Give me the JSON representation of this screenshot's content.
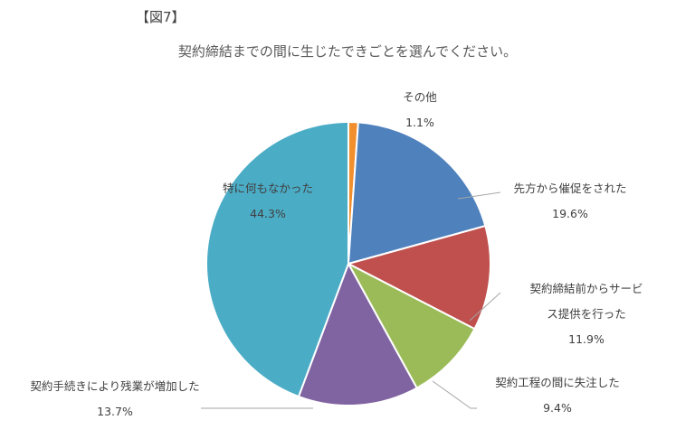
{
  "figure_label": "【図7】",
  "chart_data": {
    "type": "pie",
    "title": "契約締結までの間に生じたできごとを選んでください。",
    "slices": [
      {
        "label": "その他",
        "value": 1.1,
        "value_label": "1.1%",
        "color": "#f18f2f"
      },
      {
        "label": "先方から催促をされた",
        "value": 19.6,
        "value_label": "19.6%",
        "color": "#4f81bd"
      },
      {
        "label": "契約締結前からサービス提供を行った",
        "label_lines": [
          "契約締結前からサービ",
          "ス提供を行った"
        ],
        "value": 11.9,
        "value_label": "11.9%",
        "color": "#c0504d"
      },
      {
        "label": "契約工程の間に失注した",
        "value": 9.4,
        "value_label": "9.4%",
        "color": "#9bbb59"
      },
      {
        "label": "契約手続きにより残業が増加した",
        "value": 13.7,
        "value_label": "13.7%",
        "color": "#8064a2"
      },
      {
        "label": "特に何もなかった",
        "value": 44.3,
        "value_label": "44.3%",
        "color": "#4bacc6"
      }
    ],
    "start_angle_deg": 0,
    "direction": "clockwise",
    "legend": "none"
  }
}
